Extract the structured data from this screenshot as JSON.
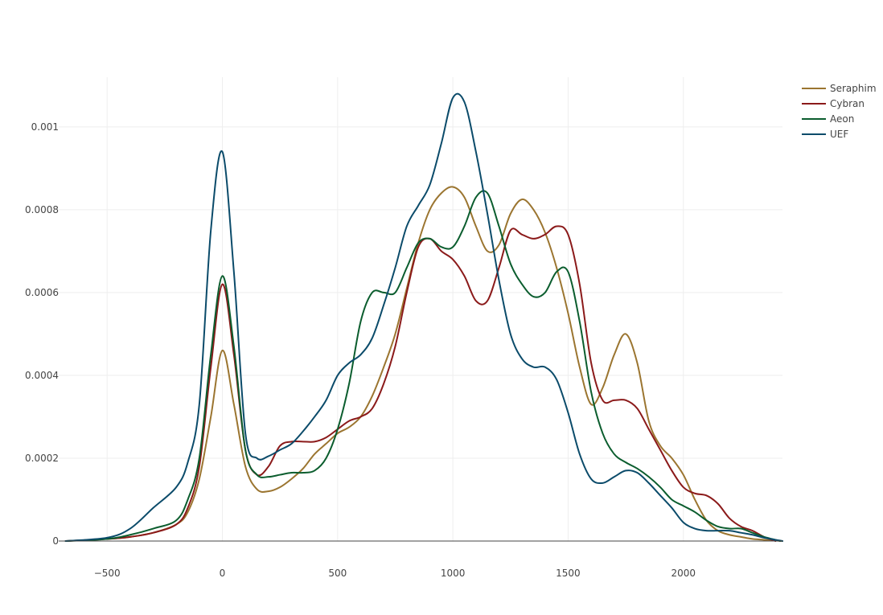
{
  "chart_data": {
    "type": "line",
    "title": "",
    "xlabel": "",
    "ylabel": "",
    "xlim": [
      -710,
      2430
    ],
    "ylim": [
      0,
      0.00112
    ],
    "grid": true,
    "legend_position": "top-right",
    "x_ticks": [
      {
        "value": -500,
        "label": "−500"
      },
      {
        "value": 0,
        "label": "0"
      },
      {
        "value": 500,
        "label": "500"
      },
      {
        "value": 1000,
        "label": "1000"
      },
      {
        "value": 1500,
        "label": "1500"
      },
      {
        "value": 2000,
        "label": "2000"
      }
    ],
    "y_ticks": [
      {
        "value": 0,
        "label": "0"
      },
      {
        "value": 0.0002,
        "label": "0.0002"
      },
      {
        "value": 0.0004,
        "label": "0.0004"
      },
      {
        "value": 0.0006,
        "label": "0.0006"
      },
      {
        "value": 0.0008,
        "label": "0.0008"
      },
      {
        "value": 0.001,
        "label": "0.001"
      }
    ],
    "series": [
      {
        "name": "Seraphim",
        "color": "#9b7530",
        "x": [
          -680,
          -500,
          -400,
          -300,
          -200,
          -150,
          -100,
          -50,
          0,
          50,
          100,
          150,
          200,
          250,
          300,
          350,
          400,
          450,
          500,
          550,
          600,
          650,
          700,
          750,
          800,
          850,
          900,
          950,
          1000,
          1050,
          1100,
          1150,
          1200,
          1250,
          1300,
          1350,
          1400,
          1450,
          1500,
          1550,
          1600,
          1650,
          1700,
          1750,
          1800,
          1850,
          1900,
          1950,
          2000,
          2050,
          2100,
          2150,
          2200,
          2250,
          2300,
          2350,
          2430
        ],
        "y": [
          0,
          5e-06,
          1e-05,
          2e-05,
          4e-05,
          7e-05,
          0.00015,
          0.0003,
          0.00046,
          0.00033,
          0.00018,
          0.000125,
          0.00012,
          0.00013,
          0.00015,
          0.000175,
          0.00021,
          0.000235,
          0.00026,
          0.000275,
          0.0003,
          0.00035,
          0.00042,
          0.0005,
          0.00061,
          0.00072,
          0.0008,
          0.00084,
          0.000855,
          0.00083,
          0.00076,
          0.0007,
          0.000715,
          0.00079,
          0.000825,
          0.0008,
          0.000745,
          0.00066,
          0.00055,
          0.00042,
          0.00033,
          0.00037,
          0.00045,
          0.0005,
          0.00043,
          0.00029,
          0.00023,
          0.0002,
          0.00016,
          0.0001,
          5e-05,
          2.5e-05,
          1.5e-05,
          1e-05,
          5e-06,
          3e-06,
          0
        ]
      },
      {
        "name": "Cybran",
        "color": "#8b1a1a",
        "x": [
          -680,
          -500,
          -400,
          -300,
          -200,
          -150,
          -100,
          -50,
          0,
          50,
          100,
          150,
          200,
          250,
          300,
          350,
          400,
          450,
          500,
          550,
          600,
          650,
          700,
          750,
          800,
          850,
          900,
          950,
          1000,
          1050,
          1100,
          1150,
          1200,
          1250,
          1300,
          1350,
          1400,
          1450,
          1500,
          1550,
          1600,
          1650,
          1700,
          1750,
          1800,
          1850,
          1900,
          1950,
          2000,
          2050,
          2100,
          2150,
          2200,
          2250,
          2300,
          2350,
          2400
        ],
        "y": [
          0,
          5e-06,
          1e-05,
          2e-05,
          4e-05,
          8e-05,
          0.00018,
          0.00042,
          0.00062,
          0.00045,
          0.00022,
          0.00016,
          0.00018,
          0.00023,
          0.00024,
          0.00024,
          0.00024,
          0.00025,
          0.00027,
          0.00029,
          0.0003,
          0.00032,
          0.00038,
          0.00047,
          0.0006,
          0.00071,
          0.00073,
          0.0007,
          0.00068,
          0.00064,
          0.00058,
          0.00058,
          0.00066,
          0.00075,
          0.00074,
          0.00073,
          0.00074,
          0.00076,
          0.00074,
          0.00062,
          0.00043,
          0.00034,
          0.00034,
          0.00034,
          0.00032,
          0.00027,
          0.00022,
          0.00017,
          0.00013,
          0.000115,
          0.00011,
          9e-05,
          5.5e-05,
          3.5e-05,
          2.5e-05,
          1e-05,
          0
        ]
      },
      {
        "name": "Aeon",
        "color": "#0b5d2e",
        "x": [
          -680,
          -500,
          -400,
          -300,
          -200,
          -150,
          -100,
          -50,
          0,
          50,
          100,
          150,
          200,
          250,
          300,
          350,
          400,
          450,
          500,
          550,
          600,
          650,
          700,
          750,
          800,
          850,
          900,
          950,
          1000,
          1050,
          1100,
          1150,
          1200,
          1250,
          1300,
          1350,
          1400,
          1450,
          1500,
          1550,
          1600,
          1650,
          1700,
          1750,
          1800,
          1850,
          1900,
          1950,
          2000,
          2050,
          2100,
          2150,
          2200,
          2250,
          2300,
          2350,
          2420
        ],
        "y": [
          0,
          5e-06,
          1.5e-05,
          3e-05,
          5e-05,
          0.0001,
          0.0002,
          0.00045,
          0.00064,
          0.00047,
          0.00022,
          0.00016,
          0.000155,
          0.00016,
          0.000165,
          0.000165,
          0.00017,
          0.0002,
          0.00027,
          0.00038,
          0.00053,
          0.0006,
          0.0006,
          0.0006,
          0.00066,
          0.00072,
          0.00073,
          0.00071,
          0.00071,
          0.00076,
          0.00083,
          0.00084,
          0.00076,
          0.00067,
          0.00062,
          0.00059,
          0.0006,
          0.00065,
          0.00065,
          0.00053,
          0.00036,
          0.00026,
          0.00021,
          0.00019,
          0.000175,
          0.000155,
          0.00013,
          0.0001,
          8.5e-05,
          7e-05,
          5e-05,
          3.5e-05,
          3e-05,
          3e-05,
          2e-05,
          1e-05,
          0
        ]
      },
      {
        "name": "UEF",
        "color": "#0b4b6a",
        "x": [
          -680,
          -500,
          -400,
          -300,
          -200,
          -150,
          -100,
          -50,
          0,
          50,
          100,
          150,
          200,
          250,
          300,
          350,
          400,
          450,
          500,
          550,
          600,
          650,
          700,
          750,
          800,
          850,
          900,
          950,
          1000,
          1050,
          1100,
          1150,
          1200,
          1250,
          1300,
          1350,
          1400,
          1450,
          1500,
          1550,
          1600,
          1650,
          1700,
          1750,
          1800,
          1850,
          1900,
          1950,
          2000,
          2050,
          2100,
          2150,
          2200,
          2250,
          2300,
          2350,
          2430
        ],
        "y": [
          0,
          8e-06,
          3e-05,
          8e-05,
          0.00013,
          0.00019,
          0.00033,
          0.00075,
          0.00094,
          0.00065,
          0.00026,
          0.0002,
          0.000205,
          0.00022,
          0.000235,
          0.000265,
          0.0003,
          0.00034,
          0.0004,
          0.00043,
          0.00045,
          0.00049,
          0.00057,
          0.00066,
          0.00076,
          0.00081,
          0.00086,
          0.00096,
          0.00107,
          0.00106,
          0.00094,
          0.00079,
          0.00063,
          0.0005,
          0.00044,
          0.00042,
          0.00042,
          0.00039,
          0.00031,
          0.00021,
          0.00015,
          0.00014,
          0.000155,
          0.00017,
          0.000165,
          0.00014,
          0.00011,
          8e-05,
          4.5e-05,
          3e-05,
          2.5e-05,
          2.5e-05,
          2.5e-05,
          2e-05,
          1.5e-05,
          8e-06,
          0
        ]
      }
    ]
  }
}
